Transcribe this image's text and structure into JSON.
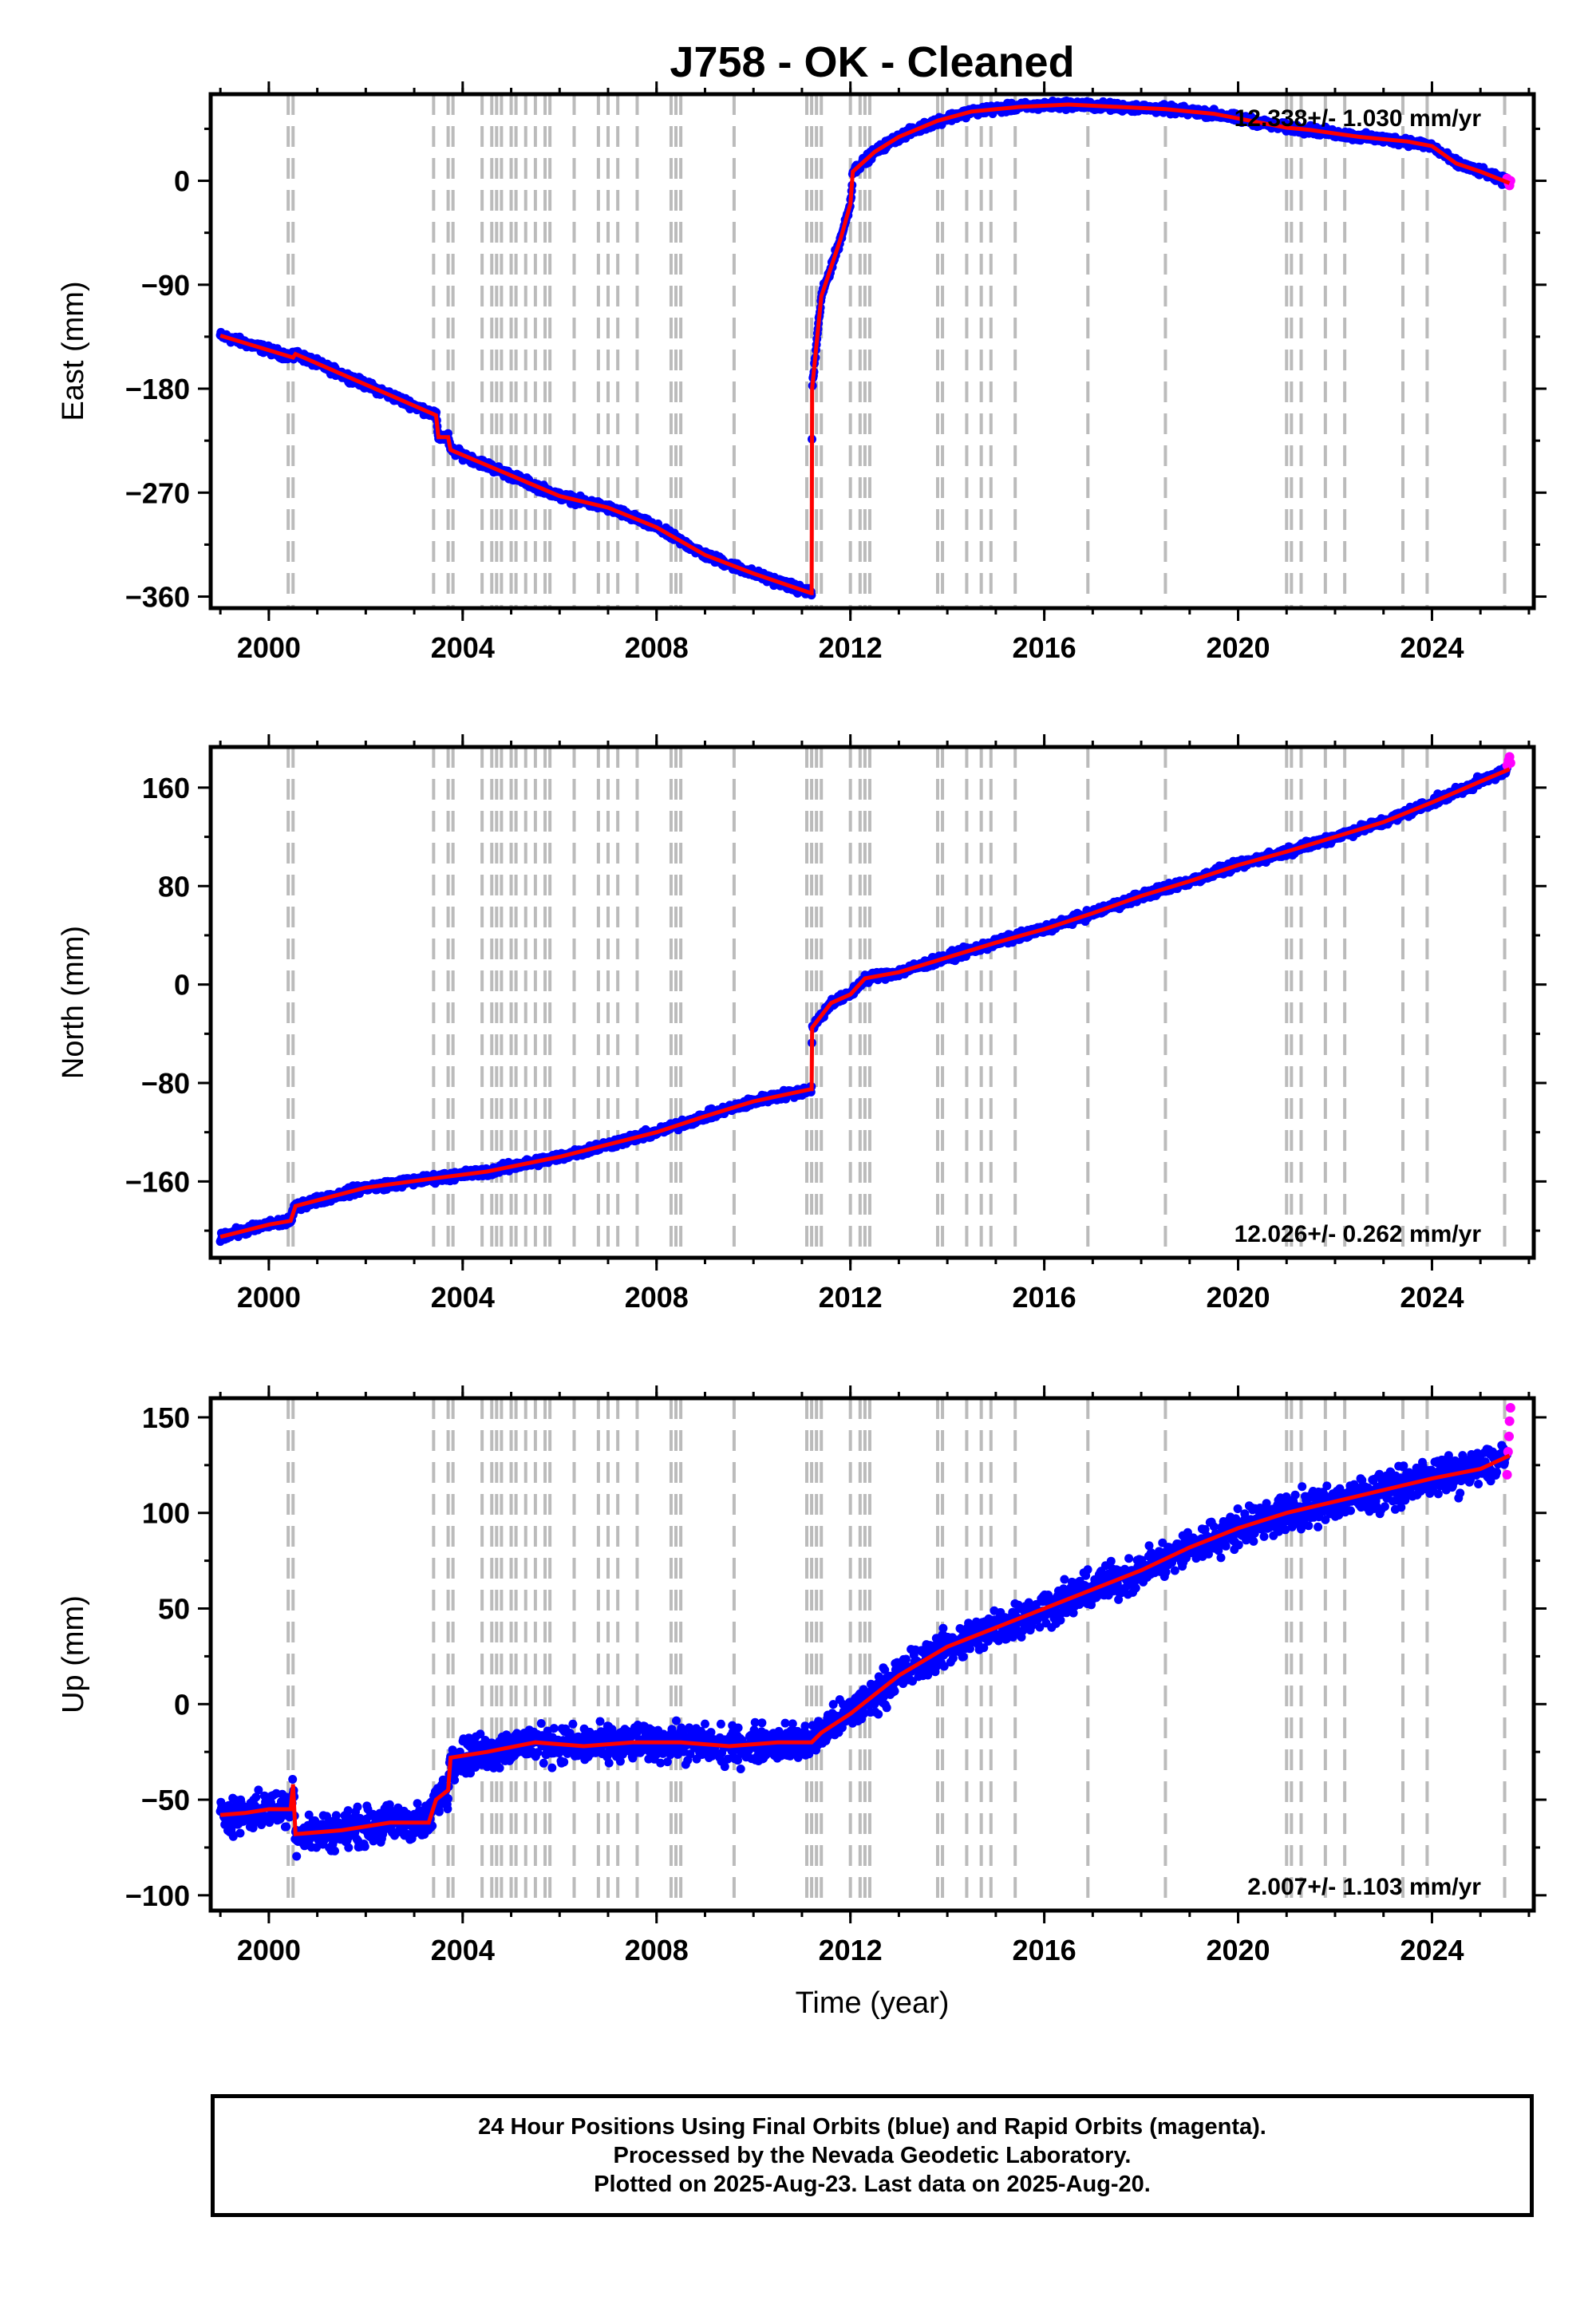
{
  "title": "J758  - OK - Cleaned",
  "xlabel": "Time (year)",
  "colors": {
    "final": "#0000ff",
    "rapid": "#ff00ff",
    "model": "#ff0000",
    "breaks": "#bbbbbb"
  },
  "footer": {
    "line1": "24 Hour Positions Using Final Orbits (blue) and Rapid Orbits (magenta).",
    "line2": "Processed by the Nevada Geodetic Laboratory.",
    "line3": "Plotted on 2025-Aug-23. Last data on 2025-Aug-20."
  },
  "chart_data": [
    {
      "type": "scatter",
      "component": "east",
      "ylabel": "East (mm)",
      "xlim": [
        1998.8,
        2026.1
      ],
      "ylim": [
        -370,
        75
      ],
      "xticks": [
        2000,
        2004,
        2008,
        2012,
        2016,
        2020,
        2024
      ],
      "yticks": [
        -360,
        -270,
        -180,
        -90,
        0
      ],
      "rate_label": "12.338+/- 1.030 mm/yr",
      "breaks": [
        2000.4,
        2000.5,
        2003.4,
        2003.7,
        2003.8,
        2004.4,
        2004.6,
        2004.7,
        2004.8,
        2005.0,
        2005.1,
        2005.3,
        2005.5,
        2005.7,
        2005.8,
        2006.3,
        2006.8,
        2007.0,
        2007.2,
        2007.6,
        2008.3,
        2008.4,
        2008.5,
        2009.6,
        2011.1,
        2011.2,
        2011.3,
        2011.4,
        2012.0,
        2012.2,
        2012.3,
        2012.4,
        2013.8,
        2013.9,
        2014.4,
        2014.7,
        2014.9,
        2015.4,
        2016.9,
        2018.5,
        2021.0,
        2021.1,
        2021.3,
        2021.8,
        2022.2,
        2023.4,
        2023.9,
        2025.5
      ],
      "model": [
        [
          1999.0,
          -134
        ],
        [
          2000.5,
          -153
        ],
        [
          2000.55,
          -150
        ],
        [
          2003.45,
          -203
        ],
        [
          2003.5,
          -222
        ],
        [
          2003.7,
          -222
        ],
        [
          2003.75,
          -233
        ],
        [
          2006.0,
          -273
        ],
        [
          2007.0,
          -283
        ],
        [
          2008.0,
          -300
        ],
        [
          2009.0,
          -324
        ],
        [
          2010.0,
          -340
        ],
        [
          2011.19,
          -357
        ],
        [
          2011.2,
          -357
        ],
        [
          2011.21,
          -180
        ],
        [
          2011.4,
          -100
        ],
        [
          2011.8,
          -50
        ],
        [
          2012.0,
          -20
        ],
        [
          2012.05,
          8
        ],
        [
          2012.5,
          25
        ],
        [
          2013.0,
          38
        ],
        [
          2013.8,
          52
        ],
        [
          2014.5,
          60
        ],
        [
          2015.5,
          64
        ],
        [
          2016.5,
          66
        ],
        [
          2017.5,
          64
        ],
        [
          2018.5,
          62
        ],
        [
          2019.5,
          58
        ],
        [
          2020.5,
          50
        ],
        [
          2021.0,
          46
        ],
        [
          2021.5,
          44
        ],
        [
          2022.5,
          38
        ],
        [
          2023.5,
          34
        ],
        [
          2024.0,
          30
        ],
        [
          2024.5,
          15
        ],
        [
          2025.0,
          8
        ],
        [
          2025.6,
          -2
        ]
      ],
      "noise": 3,
      "rapid": [
        [
          2025.55,
          2
        ],
        [
          2025.58,
          -2
        ],
        [
          2025.6,
          -4
        ],
        [
          2025.62,
          0
        ]
      ]
    },
    {
      "type": "scatter",
      "component": "north",
      "ylabel": "North (mm)",
      "xlim": [
        1998.8,
        2026.1
      ],
      "ylim": [
        -222,
        193
      ],
      "xticks": [
        2000,
        2004,
        2008,
        2012,
        2016,
        2020,
        2024
      ],
      "yticks": [
        -160,
        -80,
        0,
        80,
        160
      ],
      "rate_label": "12.026+/- 0.262 mm/yr",
      "breaks": [
        2000.4,
        2000.5,
        2003.4,
        2003.7,
        2003.8,
        2004.4,
        2004.6,
        2004.7,
        2004.8,
        2005.0,
        2005.1,
        2005.3,
        2005.5,
        2005.7,
        2005.8,
        2006.3,
        2006.8,
        2007.0,
        2007.2,
        2007.6,
        2008.3,
        2008.4,
        2008.5,
        2009.6,
        2011.1,
        2011.2,
        2011.3,
        2011.4,
        2012.0,
        2012.2,
        2012.3,
        2012.4,
        2013.8,
        2013.9,
        2014.4,
        2014.7,
        2014.9,
        2015.4,
        2016.9,
        2018.5,
        2021.0,
        2021.1,
        2021.3,
        2021.8,
        2022.2,
        2023.4,
        2023.9,
        2025.5
      ],
      "model": [
        [
          1999.0,
          -205
        ],
        [
          2000.0,
          -195
        ],
        [
          2000.45,
          -192
        ],
        [
          2000.55,
          -180
        ],
        [
          2002.0,
          -165
        ],
        [
          2003.5,
          -157
        ],
        [
          2004.5,
          -152
        ],
        [
          2006.0,
          -140
        ],
        [
          2007.0,
          -130
        ],
        [
          2008.0,
          -120
        ],
        [
          2009.0,
          -107
        ],
        [
          2010.0,
          -95
        ],
        [
          2011.19,
          -85
        ],
        [
          2011.2,
          -85
        ],
        [
          2011.21,
          -35
        ],
        [
          2011.6,
          -15
        ],
        [
          2012.0,
          -8
        ],
        [
          2012.3,
          5
        ],
        [
          2013.0,
          10
        ],
        [
          2014.0,
          22
        ],
        [
          2015.0,
          34
        ],
        [
          2016.0,
          45
        ],
        [
          2017.0,
          58
        ],
        [
          2018.0,
          72
        ],
        [
          2019.0,
          84
        ],
        [
          2020.0,
          97
        ],
        [
          2021.0,
          108
        ],
        [
          2022.0,
          120
        ],
        [
          2023.0,
          132
        ],
        [
          2024.0,
          148
        ],
        [
          2025.0,
          165
        ],
        [
          2025.6,
          175
        ]
      ],
      "noise": 3,
      "rapid": [
        [
          2025.55,
          178
        ],
        [
          2025.58,
          182
        ],
        [
          2025.6,
          185
        ],
        [
          2025.62,
          180
        ]
      ]
    },
    {
      "type": "scatter",
      "component": "up",
      "ylabel": "Up (mm)",
      "xlabel": "Time (year)",
      "xlim": [
        1998.8,
        2026.1
      ],
      "ylim": [
        -108,
        160
      ],
      "xticks": [
        2000,
        2004,
        2008,
        2012,
        2016,
        2020,
        2024
      ],
      "yticks": [
        -100,
        -50,
        0,
        50,
        100,
        150
      ],
      "rate_label": "2.007+/- 1.103 mm/yr",
      "breaks": [
        2000.4,
        2000.5,
        2003.4,
        2003.7,
        2003.8,
        2004.4,
        2004.6,
        2004.7,
        2004.8,
        2005.0,
        2005.1,
        2005.3,
        2005.5,
        2005.7,
        2005.8,
        2006.3,
        2006.8,
        2007.0,
        2007.2,
        2007.6,
        2008.3,
        2008.4,
        2008.5,
        2009.6,
        2011.1,
        2011.2,
        2011.3,
        2011.4,
        2012.0,
        2012.2,
        2012.3,
        2012.4,
        2013.8,
        2013.9,
        2014.4,
        2014.7,
        2014.9,
        2015.4,
        2016.9,
        2018.5,
        2021.0,
        2021.1,
        2021.3,
        2021.8,
        2022.2,
        2023.4,
        2023.9,
        2025.5
      ],
      "model": [
        [
          1999.0,
          -58
        ],
        [
          1999.5,
          -57
        ],
        [
          2000.0,
          -55
        ],
        [
          2000.45,
          -55
        ],
        [
          2000.5,
          -42
        ],
        [
          2000.55,
          -68
        ],
        [
          2001.5,
          -66
        ],
        [
          2002.5,
          -62
        ],
        [
          2003.3,
          -62
        ],
        [
          2003.45,
          -50
        ],
        [
          2003.7,
          -45
        ],
        [
          2003.75,
          -28
        ],
        [
          2004.5,
          -25
        ],
        [
          2005.5,
          -20
        ],
        [
          2006.5,
          -22
        ],
        [
          2007.5,
          -20
        ],
        [
          2008.5,
          -20
        ],
        [
          2009.5,
          -22
        ],
        [
          2010.5,
          -20
        ],
        [
          2011.2,
          -20
        ],
        [
          2011.4,
          -15
        ],
        [
          2012.0,
          -5
        ],
        [
          2013.0,
          15
        ],
        [
          2014.0,
          30
        ],
        [
          2015.0,
          40
        ],
        [
          2016.0,
          50
        ],
        [
          2017.0,
          60
        ],
        [
          2018.0,
          70
        ],
        [
          2019.0,
          82
        ],
        [
          2020.0,
          92
        ],
        [
          2021.0,
          100
        ],
        [
          2022.0,
          106
        ],
        [
          2023.0,
          112
        ],
        [
          2024.0,
          118
        ],
        [
          2025.0,
          123
        ],
        [
          2025.6,
          130
        ]
      ],
      "noise": 8,
      "rapid": [
        [
          2025.55,
          120
        ],
        [
          2025.57,
          132
        ],
        [
          2025.59,
          140
        ],
        [
          2025.6,
          148
        ],
        [
          2025.62,
          155
        ]
      ]
    }
  ]
}
